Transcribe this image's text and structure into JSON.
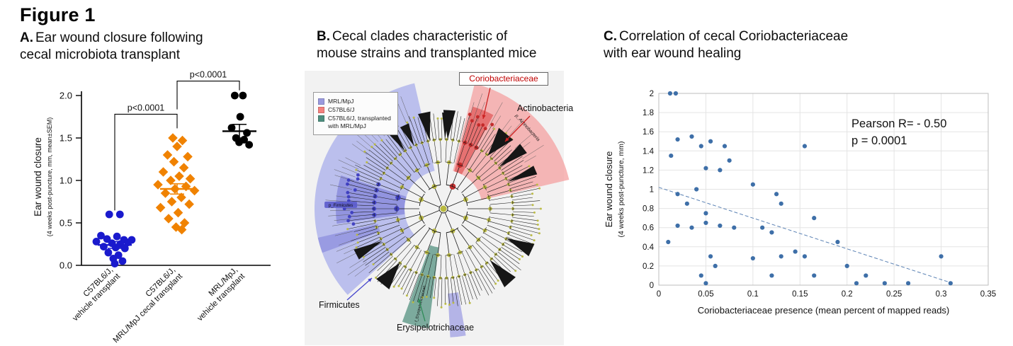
{
  "figure": {
    "title": "Figure 1"
  },
  "panels": {
    "a": {
      "label": "A.",
      "title_line1": "Ear wound closure following",
      "title_line2": "cecal microbiota transplant"
    },
    "b": {
      "label": "B.",
      "title_line1": "Cecal clades characteristic of",
      "title_line2": "mouse strains and transplanted mice"
    },
    "c": {
      "label": "C.",
      "title_line1": "Correlation of cecal Coriobacteriaceae",
      "title_line2": "with ear wound healing"
    }
  },
  "chart_data": [
    {
      "id": "ear-wound-dotplot",
      "type": "scatter",
      "title": "Ear wound closure following cecal microbiota transplant",
      "ylabel": "Ear wound closure",
      "ylabel_sub": "(4 weeks post-puncture, mm, mean±SEM)",
      "ylim": [
        0,
        2.0
      ],
      "yticks": [
        0.0,
        0.5,
        1.0,
        1.5,
        2.0
      ],
      "groups": [
        {
          "name": "C57BL6/J, vehicle transplant",
          "label_lines": [
            "C57BL6/J,",
            "vehicle transplant"
          ],
          "color": "#1a1acd",
          "marker": "circle",
          "mean": 0.24,
          "sem": 0.04,
          "points": [
            [
              -0.3,
              0.6
            ],
            [
              0.28,
              0.6
            ],
            [
              -0.75,
              0.35
            ],
            [
              0.12,
              0.34
            ],
            [
              -0.42,
              0.31
            ],
            [
              0.5,
              0.3
            ],
            [
              0.92,
              0.3
            ],
            [
              -1.0,
              0.28
            ],
            [
              0.72,
              0.27
            ],
            [
              -0.15,
              0.26
            ],
            [
              0.3,
              0.25
            ],
            [
              -0.6,
              0.22
            ],
            [
              0.05,
              0.21
            ],
            [
              0.55,
              0.2
            ],
            [
              -0.35,
              0.15
            ],
            [
              0.2,
              0.12
            ],
            [
              -0.08,
              0.08
            ],
            [
              0.42,
              0.05
            ],
            [
              0.0,
              0.02
            ]
          ]
        },
        {
          "name": "C57BL6/J, MRL/MpJ cecal transplant",
          "label_lines": [
            "C57BL6/J,",
            "MRL/MpJ cecal transplant"
          ],
          "color": "#f08200",
          "marker": "diamond",
          "mean": 0.9,
          "sem": 0.06,
          "points": [
            [
              -0.2,
              1.5
            ],
            [
              0.25,
              1.47
            ],
            [
              0.0,
              1.4
            ],
            [
              -0.45,
              1.3
            ],
            [
              0.5,
              1.28
            ],
            [
              -0.15,
              1.22
            ],
            [
              0.32,
              1.15
            ],
            [
              -0.65,
              1.1
            ],
            [
              0.1,
              1.05
            ],
            [
              0.62,
              1.02
            ],
            [
              -0.3,
              1.0
            ],
            [
              -0.9,
              0.95
            ],
            [
              0.42,
              0.93
            ],
            [
              -0.1,
              0.9
            ],
            [
              0.82,
              0.88
            ],
            [
              -0.55,
              0.85
            ],
            [
              0.2,
              0.8
            ],
            [
              -0.25,
              0.75
            ],
            [
              0.57,
              0.72
            ],
            [
              -0.78,
              0.68
            ],
            [
              0.05,
              0.62
            ],
            [
              -0.4,
              0.55
            ],
            [
              0.35,
              0.5
            ],
            [
              -0.05,
              0.45
            ],
            [
              0.22,
              0.42
            ]
          ]
        },
        {
          "name": "MRL/MpJ, vehicle transplant",
          "label_lines": [
            "MRL/MpJ,",
            "vehicle transplant"
          ],
          "color": "#000000",
          "marker": "circle",
          "mean": 1.58,
          "sem": 0.08,
          "points": [
            [
              -0.3,
              2.0
            ],
            [
              0.22,
              2.0
            ],
            [
              0.05,
              1.75
            ],
            [
              -0.5,
              1.62
            ],
            [
              0.48,
              1.56
            ],
            [
              -0.22,
              1.5
            ],
            [
              0.3,
              1.48
            ],
            [
              -0.02,
              1.45
            ],
            [
              0.62,
              1.42
            ]
          ]
        }
      ],
      "significance": [
        {
          "between": [
            0,
            1
          ],
          "label": "p<0.0001",
          "y": 1.78
        },
        {
          "between": [
            1,
            2
          ],
          "label": "p<0.0001",
          "y": 2.17
        }
      ]
    },
    {
      "id": "coriobacteriaceae-correlation",
      "type": "scatter",
      "title": "Correlation of cecal Coriobacteriaceae with ear wound healing",
      "xlabel": "Coriobacteriaceae presence (mean percent of mapped reads)",
      "ylabel": "Ear wound closure",
      "ylabel_sub": "(4 weeks post-puncture, mm)",
      "xlim": [
        0,
        0.35
      ],
      "ylim": [
        0,
        2
      ],
      "xticks": [
        "0",
        "0.05",
        "0.1",
        "0.15",
        "0.2",
        "0.25",
        "0.3",
        "0.35"
      ],
      "yticks": [
        "0",
        "0.2",
        "0.4",
        "0.6",
        "0.8",
        "1",
        "1.2",
        "1.4",
        "1.6",
        "1.8",
        "2"
      ],
      "annotation_line1": "Pearson R= - 0.50",
      "annotation_line2": "p = 0.0001",
      "pearson_r": -0.5,
      "p_value": 0.0001,
      "point_color": "#3e6fa8",
      "grid": true,
      "points": [
        [
          0.012,
          2.0
        ],
        [
          0.018,
          2.0
        ],
        [
          0.013,
          1.35
        ],
        [
          0.02,
          1.52
        ],
        [
          0.035,
          1.55
        ],
        [
          0.045,
          1.45
        ],
        [
          0.055,
          1.5
        ],
        [
          0.07,
          1.45
        ],
        [
          0.05,
          1.22
        ],
        [
          0.065,
          1.2
        ],
        [
          0.075,
          1.3
        ],
        [
          0.155,
          1.45
        ],
        [
          0.02,
          0.95
        ],
        [
          0.04,
          1.0
        ],
        [
          0.1,
          1.05
        ],
        [
          0.125,
          0.95
        ],
        [
          0.03,
          0.85
        ],
        [
          0.13,
          0.85
        ],
        [
          0.05,
          0.75
        ],
        [
          0.02,
          0.62
        ],
        [
          0.035,
          0.6
        ],
        [
          0.05,
          0.65
        ],
        [
          0.065,
          0.62
        ],
        [
          0.08,
          0.6
        ],
        [
          0.11,
          0.6
        ],
        [
          0.165,
          0.7
        ],
        [
          0.01,
          0.45
        ],
        [
          0.19,
          0.45
        ],
        [
          0.12,
          0.55
        ],
        [
          0.055,
          0.3
        ],
        [
          0.1,
          0.28
        ],
        [
          0.13,
          0.3
        ],
        [
          0.145,
          0.35
        ],
        [
          0.155,
          0.3
        ],
        [
          0.3,
          0.3
        ],
        [
          0.06,
          0.2
        ],
        [
          0.2,
          0.2
        ],
        [
          0.045,
          0.1
        ],
        [
          0.12,
          0.1
        ],
        [
          0.165,
          0.1
        ],
        [
          0.22,
          0.1
        ],
        [
          0.05,
          0.02
        ],
        [
          0.21,
          0.02
        ],
        [
          0.24,
          0.02
        ],
        [
          0.265,
          0.02
        ],
        [
          0.31,
          0.02
        ]
      ],
      "trendline": {
        "x1": 0,
        "y1": 1.02,
        "x2": 0.312,
        "y2": 0.02
      }
    }
  ],
  "cladogram": {
    "legend": [
      {
        "label": "MRL/MpJ",
        "color": "#9a9ade"
      },
      {
        "label": "C57BL6/J",
        "color": "#f4817e"
      },
      {
        "label_lines": [
          "C57BL6/J, transplanted",
          "with MRL/MpJ"
        ],
        "color": "#4d8e7e"
      }
    ],
    "callouts": {
      "coriobacteriaceae": {
        "text": "Coriobacteriaceae",
        "color": "#c00000"
      },
      "actinobacteria": {
        "text": "Actinobacteria",
        "color": "#111111"
      },
      "firmicutes": {
        "text": "Firmicutes",
        "color": "#111111"
      },
      "erysipelotrichaceae": {
        "text": "Erysipelotrichaceae",
        "color": "#111111"
      }
    },
    "inner_labels": {
      "actinobacteria": "p_Actinobacteria",
      "firmicutes": "p_Firmicutes",
      "erysipelotrichaceae": "f_Erysipelotrichaceae"
    },
    "sectors": [
      {
        "name": "actinobacteria",
        "a0": 14,
        "a1": 77,
        "r0": 55,
        "r1": 182,
        "color": "#f49c9c",
        "opacity": 0.72
      },
      {
        "name": "coriobacteriaceae",
        "a0": 16,
        "a1": 28,
        "r0": 55,
        "r1": 150,
        "color": "#e25b5b",
        "opacity": 0.75
      },
      {
        "name": "firmicutes",
        "a0": 228,
        "a1": 347,
        "r0": 55,
        "r1": 182,
        "color": "#a0a6ea",
        "opacity": 0.68
      },
      {
        "name": "firmicutes-sub",
        "a0": 262,
        "a1": 288,
        "r0": 55,
        "r1": 152,
        "color": "#6a6ad2",
        "opacity": 0.5
      },
      {
        "name": "clade-a",
        "a0": 250,
        "a1": 257,
        "r0": 95,
        "r1": 182,
        "color": "#7d7dd8",
        "opacity": 0.55
      },
      {
        "name": "clade-b",
        "a0": 170,
        "a1": 177,
        "r0": 120,
        "r1": 182,
        "color": "#8a8ae0",
        "opacity": 0.6
      },
      {
        "name": "erysipelotrichaceae",
        "a0": 187,
        "a1": 200,
        "r0": 55,
        "r1": 170,
        "color": "#4e8d7c",
        "opacity": 0.72
      }
    ],
    "highlight_angle_ranges": {
      "red": [
        14,
        30
      ],
      "blue": [
        260,
        292
      ]
    }
  }
}
